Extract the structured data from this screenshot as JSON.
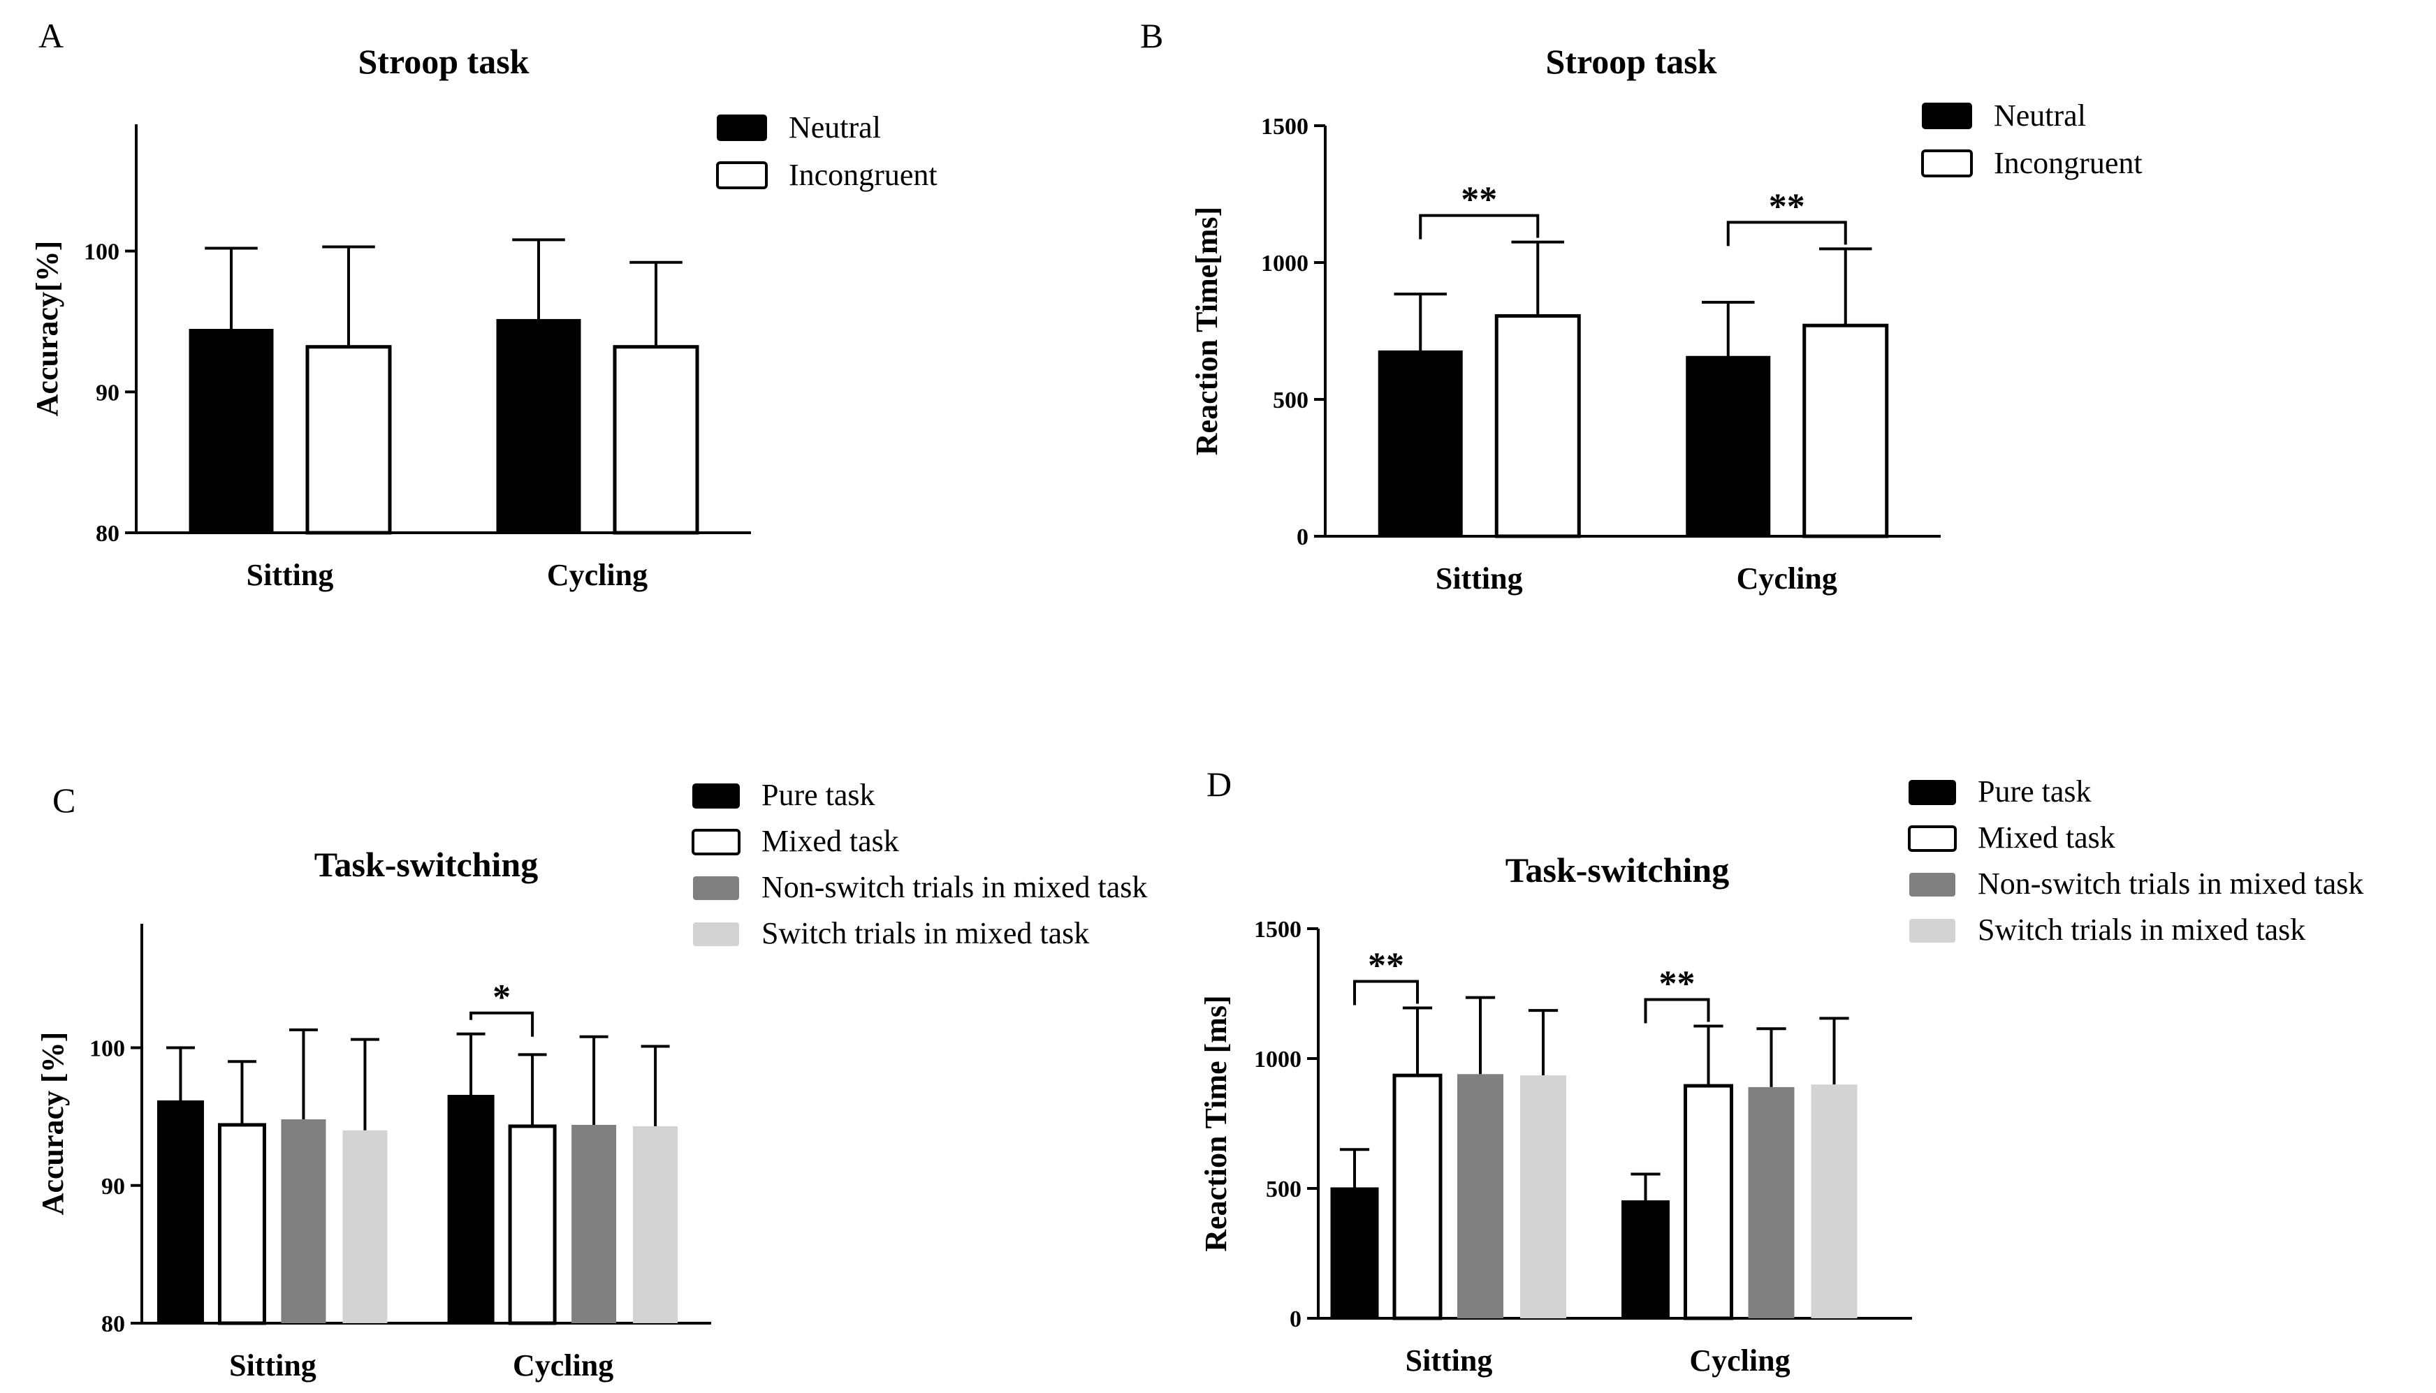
{
  "figure": {
    "panels": [
      {
        "id": "A",
        "letter": "A",
        "title": "Stroop task"
      },
      {
        "id": "B",
        "letter": "B",
        "title": "Stroop task"
      },
      {
        "id": "C",
        "letter": "C",
        "title": "Task-switching"
      },
      {
        "id": "D",
        "letter": "D",
        "title": "Task-switching"
      }
    ]
  },
  "chart_data": [
    {
      "panel": "A",
      "type": "bar",
      "title": "Stroop task",
      "xlabel": "",
      "ylabel": "Accuracy[%]",
      "ylim": [
        80,
        109
      ],
      "yticks": [
        80,
        90,
        100
      ],
      "categories": [
        "Sitting",
        "Cycling"
      ],
      "series": [
        {
          "name": "Neutral",
          "color": "#000000",
          "values": [
            94.4,
            95.1
          ],
          "errors": [
            5.8,
            5.7
          ]
        },
        {
          "name": "Incongruent",
          "color": "#ffffff",
          "values": [
            93.2,
            93.2
          ],
          "errors": [
            7.1,
            6.0
          ]
        }
      ],
      "significance": [],
      "legend": "top-right",
      "grid": false
    },
    {
      "panel": "B",
      "type": "bar",
      "title": "Stroop task",
      "xlabel": "",
      "ylabel": "Reaction Time[ms]",
      "ylim": [
        0,
        1500
      ],
      "yticks": [
        0,
        500,
        1000,
        1500
      ],
      "categories": [
        "Sitting",
        "Cycling"
      ],
      "series": [
        {
          "name": "Neutral",
          "color": "#000000",
          "values": [
            675,
            655
          ],
          "errors": [
            210,
            200
          ]
        },
        {
          "name": "Incongruent",
          "color": "#ffffff",
          "values": [
            805,
            770
          ],
          "errors": [
            270,
            280
          ]
        }
      ],
      "significance": [
        {
          "category": 0,
          "from": 0,
          "to": 1,
          "label": "**"
        },
        {
          "category": 1,
          "from": 0,
          "to": 1,
          "label": "**"
        }
      ],
      "legend": "top-right",
      "grid": false
    },
    {
      "panel": "C",
      "type": "bar",
      "title": "Task-switching",
      "xlabel": "",
      "ylabel": "Accuracy [%]",
      "ylim": [
        80,
        109
      ],
      "yticks": [
        80,
        90,
        100
      ],
      "categories": [
        "Sitting",
        "Cycling"
      ],
      "series": [
        {
          "name": "Pure task",
          "color": "#000000",
          "values": [
            96.1,
            96.5
          ],
          "errors": [
            3.9,
            4.5
          ]
        },
        {
          "name": "Mixed task",
          "color": "#ffffff",
          "values": [
            94.4,
            94.3
          ],
          "errors": [
            4.6,
            5.2
          ]
        },
        {
          "name": "Non-switch trials in mixed task",
          "color": "#808080",
          "values": [
            94.8,
            94.4
          ],
          "errors": [
            6.5,
            6.4
          ]
        },
        {
          "name": "Switch trials in mixed task",
          "color": "#d3d3d3",
          "values": [
            94.0,
            94.3
          ],
          "errors": [
            6.6,
            5.8
          ]
        }
      ],
      "significance": [
        {
          "category": 1,
          "from": 0,
          "to": 1,
          "label": "*"
        }
      ],
      "legend": "top-right",
      "grid": false
    },
    {
      "panel": "D",
      "type": "bar",
      "title": "Task-switching",
      "xlabel": "",
      "ylabel": "Reaction Time [ms]",
      "ylim": [
        0,
        1500
      ],
      "yticks": [
        0,
        500,
        1000,
        1500
      ],
      "categories": [
        "Sitting",
        "Cycling"
      ],
      "series": [
        {
          "name": "Pure task",
          "color": "#000000",
          "values": [
            500,
            450
          ],
          "errors": [
            150,
            105
          ]
        },
        {
          "name": "Mixed task",
          "color": "#ffffff",
          "values": [
            935,
            895
          ],
          "errors": [
            260,
            230
          ]
        },
        {
          "name": "Non-switch trials in mixed task",
          "color": "#808080",
          "values": [
            940,
            890
          ],
          "errors": [
            295,
            225
          ]
        },
        {
          "name": "Switch trials in mixed task",
          "color": "#d3d3d3",
          "values": [
            935,
            900
          ],
          "errors": [
            250,
            255
          ]
        }
      ],
      "significance": [
        {
          "category": 0,
          "from": 0,
          "to": 1,
          "label": "**"
        },
        {
          "category": 1,
          "from": 0,
          "to": 1,
          "label": "**"
        }
      ],
      "legend": "top-right",
      "grid": false
    }
  ]
}
